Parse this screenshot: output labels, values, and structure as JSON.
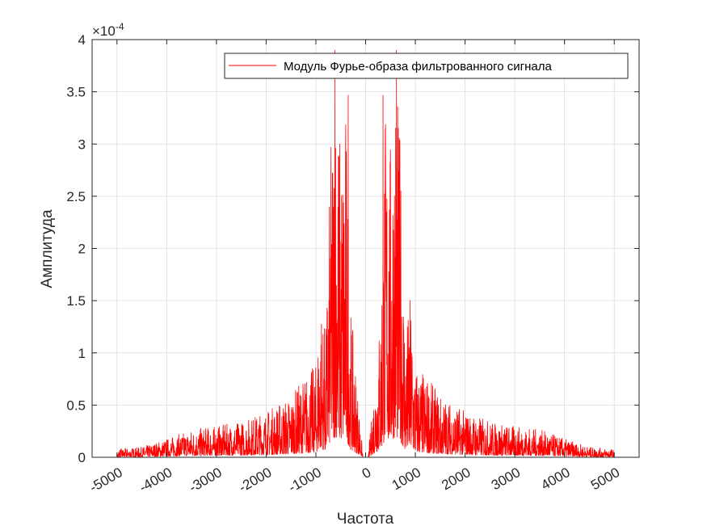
{
  "chart_data": {
    "type": "line",
    "xlabel": "Частота",
    "ylabel": "Амплитуда",
    "exponent_base": "×10",
    "exponent_power": "-4",
    "xlim": [
      -5500,
      5500
    ],
    "ylim": [
      0,
      4
    ],
    "x_ticks": [
      -5000,
      -4000,
      -3000,
      -2000,
      -1000,
      0,
      1000,
      2000,
      3000,
      4000,
      5000
    ],
    "x_tick_labels": [
      "-5000",
      "-4000",
      "-3000",
      "-2000",
      "-1000",
      "0",
      "1000",
      "2000",
      "3000",
      "4000",
      "5000"
    ],
    "y_ticks": [
      0,
      0.5,
      1,
      1.5,
      2,
      2.5,
      3,
      3.5,
      4
    ],
    "y_tick_labels": [
      "0",
      "0.5",
      "1",
      "1.5",
      "2",
      "2.5",
      "3",
      "3.5",
      "4"
    ],
    "grid": true,
    "legend_position": "top-right",
    "series": [
      {
        "name": "Модуль Фурье-образа фильтрованного сигнала",
        "color": "#ff0000",
        "envelope_x": [
          -5500,
          -5000,
          -4990,
          -4500,
          -4000,
          -3500,
          -3000,
          -2500,
          -2000,
          -1500,
          -1200,
          -1000,
          -900,
          -800,
          -700,
          -600,
          -500,
          -400,
          -300,
          -50,
          50,
          300,
          400,
          500,
          600,
          700,
          800,
          900,
          1000,
          1200,
          1500,
          2000,
          2500,
          3000,
          3500,
          4000,
          4500,
          4990,
          5000,
          5500
        ],
        "envelope_y": [
          0,
          0,
          0.08,
          0.1,
          0.18,
          0.27,
          0.3,
          0.35,
          0.45,
          0.6,
          0.8,
          0.9,
          1.58,
          1.2,
          3.0,
          3.9,
          3.05,
          3.45,
          1.45,
          0,
          0,
          1.45,
          3.45,
          3.05,
          3.9,
          3.0,
          1.2,
          1.58,
          0.9,
          0.8,
          0.6,
          0.45,
          0.35,
          0.3,
          0.27,
          0.18,
          0.1,
          0.08,
          0,
          0
        ],
        "peaks": [
          {
            "x": -620,
            "y": 3.9
          },
          {
            "x": -350,
            "y": 3.47
          },
          {
            "x": 350,
            "y": 3.47
          },
          {
            "x": 620,
            "y": 3.9
          }
        ]
      }
    ]
  }
}
